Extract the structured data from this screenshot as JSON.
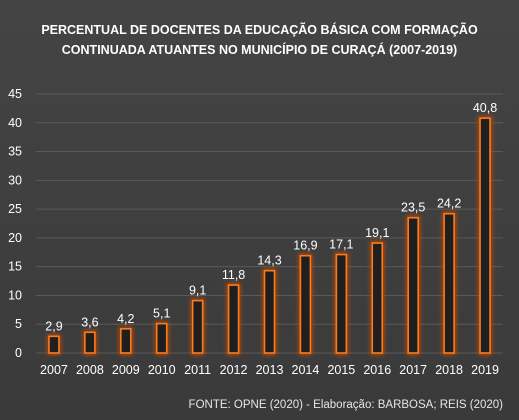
{
  "chart_data": {
    "type": "bar",
    "title_line1": "PERCENTUAL DE DOCENTES DA EDUCAÇÃO BÁSICA  COM FORMAÇÃO",
    "title_line2": "CONTINUADA ATUANTES NO MUNICÍPIO DE CURAÇÁ (2007-2019)",
    "categories": [
      "2007",
      "2008",
      "2009",
      "2010",
      "2011",
      "2012",
      "2013",
      "2014",
      "2015",
      "2016",
      "2017",
      "2018",
      "2019"
    ],
    "values": [
      2.9,
      3.6,
      4.2,
      5.1,
      9.1,
      11.8,
      14.3,
      16.9,
      17.1,
      19.1,
      23.5,
      24.2,
      40.8
    ],
    "data_labels": [
      "2,9",
      "3,6",
      "4,2",
      "5,1",
      "9,1",
      "11,8",
      "14,3",
      "16,9",
      "17,1",
      "19,1",
      "23,5",
      "24,2",
      "40,8"
    ],
    "y_ticks": [
      "0",
      "5",
      "10",
      "15",
      "20",
      "25",
      "30",
      "35",
      "40",
      "45"
    ],
    "ylim": [
      0,
      45
    ],
    "grid": true,
    "legend": "none",
    "xlabel": "",
    "ylabel": "",
    "source": "FONTE: OPNE (2020) - Elaboração: BARBOSA; REIS (2020)",
    "colors": {
      "background": "#404040",
      "bar_fill": "#1f1f1f",
      "bar_edge": "#ff7a1a",
      "bar_glow": "#c04a00",
      "grid": "#5a5a5a",
      "text": "#ffffff"
    }
  }
}
